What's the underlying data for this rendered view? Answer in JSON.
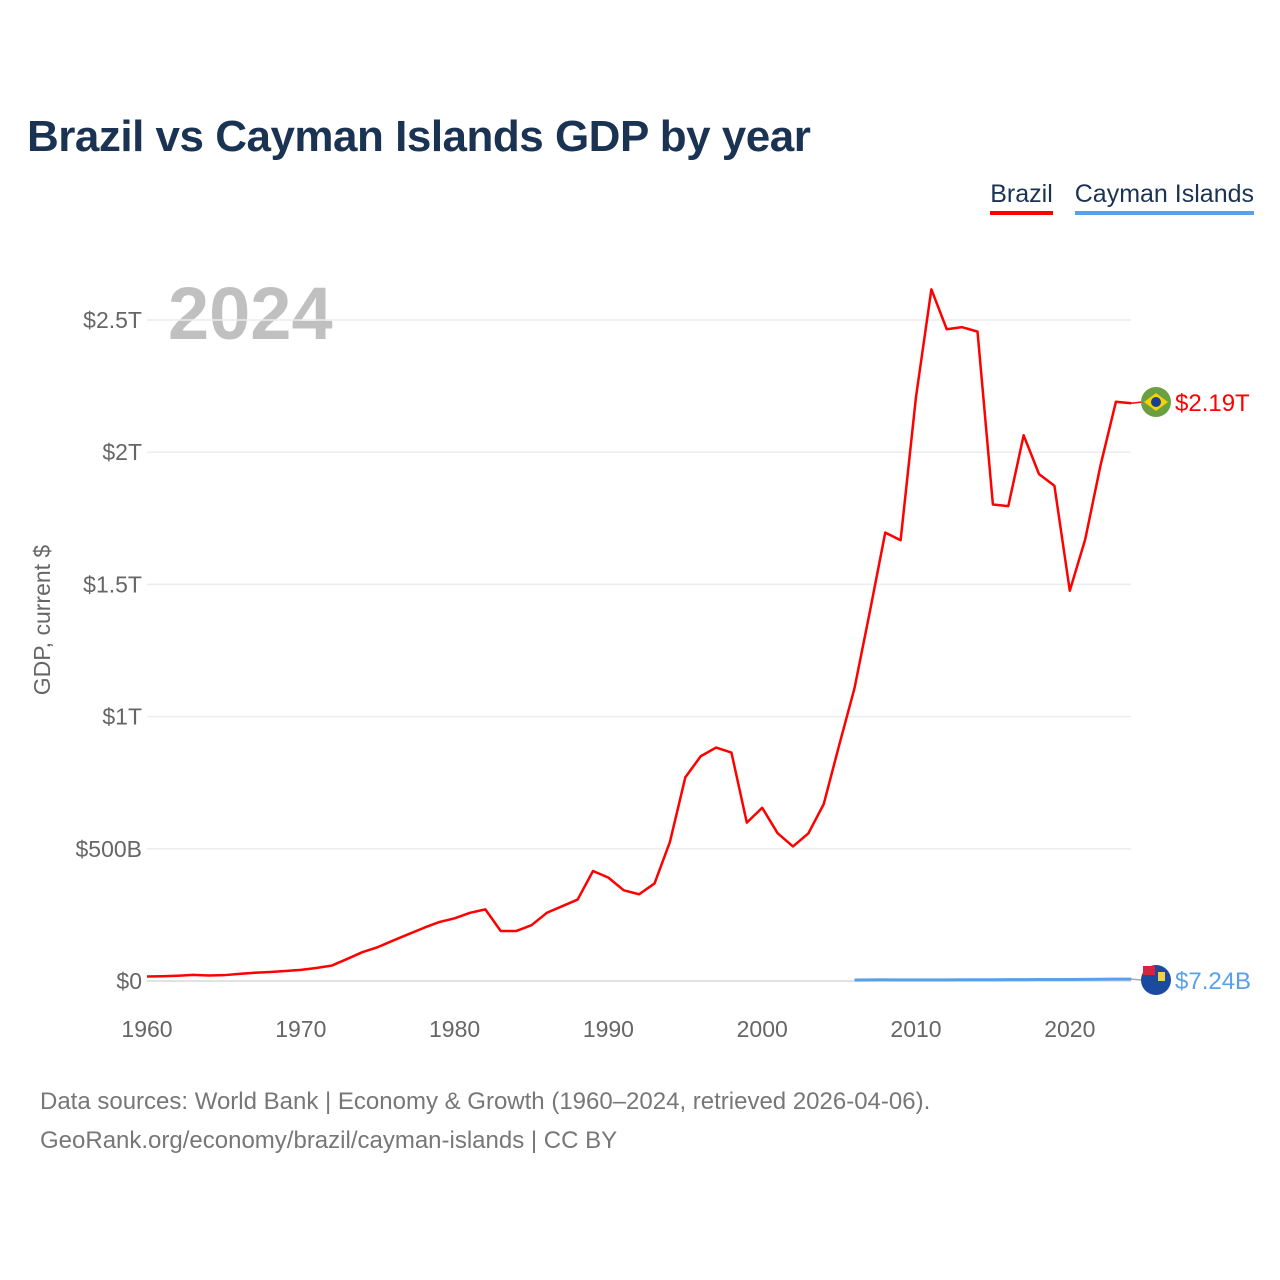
{
  "title": "Brazil vs Cayman Islands GDP by year",
  "footer": {
    "line1": "Data sources: World Bank | Economy & Growth (1960–2024, retrieved 2026-04-06).",
    "line2": "GeoRank.org/economy/brazil/cayman-islands | CC BY"
  },
  "chart_data": {
    "type": "line",
    "title": "Brazil vs Cayman Islands GDP by year",
    "current_year_label": "2024",
    "ylabel": "GDP, current $",
    "xlabel": "",
    "xlim": [
      1960,
      2024
    ],
    "ylim": [
      0,
      2.7
    ],
    "y_unit": "trillions USD",
    "x_ticks": [
      "1960",
      "1970",
      "1980",
      "1990",
      "2000",
      "2010",
      "2020"
    ],
    "y_ticks": [
      {
        "v": 0,
        "label": "$0"
      },
      {
        "v": 0.5,
        "label": "$500B"
      },
      {
        "v": 1,
        "label": "$1T"
      },
      {
        "v": 1.5,
        "label": "$1.5T"
      },
      {
        "v": 2,
        "label": "$2T"
      },
      {
        "v": 2.5,
        "label": "$2.5T"
      }
    ],
    "grid": true,
    "legend_placement": "top-right",
    "series": [
      {
        "name": "Brazil",
        "color": "#ff0000",
        "end_label": "$2.19T",
        "flag": "brazil-flag",
        "x": [
          1960,
          1961,
          1962,
          1963,
          1964,
          1965,
          1966,
          1967,
          1968,
          1969,
          1970,
          1971,
          1972,
          1973,
          1974,
          1975,
          1976,
          1977,
          1978,
          1979,
          1980,
          1981,
          1982,
          1983,
          1984,
          1985,
          1986,
          1987,
          1988,
          1989,
          1990,
          1991,
          1992,
          1993,
          1994,
          1995,
          1996,
          1997,
          1998,
          1999,
          2000,
          2001,
          2002,
          2003,
          2004,
          2005,
          2006,
          2007,
          2008,
          2009,
          2010,
          2011,
          2012,
          2013,
          2014,
          2015,
          2016,
          2017,
          2018,
          2019,
          2020,
          2021,
          2022,
          2023,
          2024
        ],
        "values": [
          0.017,
          0.018,
          0.02,
          0.023,
          0.021,
          0.022,
          0.027,
          0.031,
          0.034,
          0.038,
          0.042,
          0.049,
          0.058,
          0.083,
          0.109,
          0.128,
          0.153,
          0.177,
          0.201,
          0.223,
          0.237,
          0.258,
          0.271,
          0.189,
          0.189,
          0.211,
          0.258,
          0.283,
          0.308,
          0.416,
          0.391,
          0.343,
          0.328,
          0.369,
          0.526,
          0.77,
          0.85,
          0.883,
          0.864,
          0.599,
          0.655,
          0.559,
          0.509,
          0.558,
          0.669,
          0.891,
          1.107,
          1.397,
          1.696,
          1.667,
          2.209,
          2.616,
          2.465,
          2.473,
          2.456,
          1.802,
          1.796,
          2.064,
          1.917,
          1.873,
          1.476,
          1.67,
          1.951,
          2.191,
          2.185
        ]
      },
      {
        "name": "Cayman Islands",
        "color": "#5aa0e8",
        "end_label": "$7.24B",
        "flag": "cayman-islands-flag",
        "x": [
          2006,
          2007,
          2008,
          2009,
          2010,
          2011,
          2012,
          2013,
          2014,
          2015,
          2016,
          2017,
          2018,
          2019,
          2020,
          2021,
          2022,
          2023,
          2024
        ],
        "values": [
          0.004,
          0.0043,
          0.0045,
          0.0043,
          0.0042,
          0.0043,
          0.0044,
          0.0046,
          0.0047,
          0.0049,
          0.0051,
          0.0053,
          0.0055,
          0.0058,
          0.0056,
          0.0061,
          0.0066,
          0.007,
          0.00724
        ]
      }
    ]
  }
}
